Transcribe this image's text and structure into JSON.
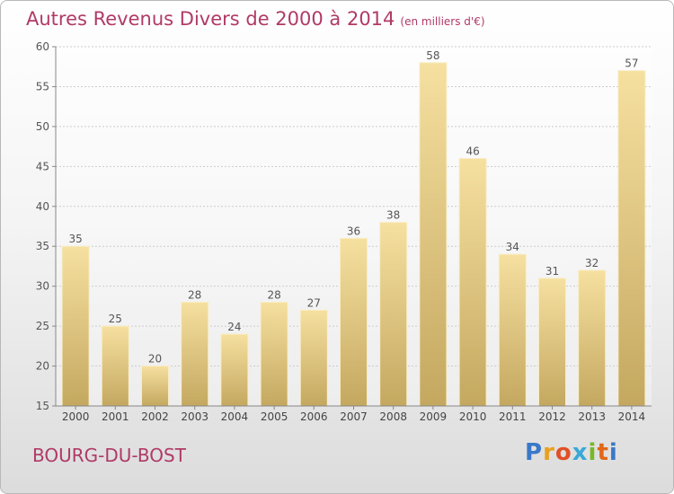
{
  "header": {
    "title": "Autres Revenus Divers de 2000 à 2014",
    "subtitle": "(en milliers d'€)"
  },
  "footer": {
    "commune": "BOURG-DU-BOST",
    "logo_letters": [
      "P",
      "r",
      "o",
      "x",
      "i",
      "t",
      "i"
    ],
    "logo_colors": [
      "#3a78c8",
      "#e8a020",
      "#e05028",
      "#3aa8d8",
      "#78b828",
      "#e06818",
      "#3a78c8"
    ]
  },
  "chart_data": {
    "type": "bar",
    "title": "Autres Revenus Divers de 2000 à 2014",
    "subtitle": "(en milliers d'€)",
    "categories": [
      "2000",
      "2001",
      "2002",
      "2003",
      "2004",
      "2005",
      "2006",
      "2007",
      "2008",
      "2009",
      "2010",
      "2011",
      "2012",
      "2013",
      "2014"
    ],
    "values": [
      35,
      25,
      20,
      28,
      24,
      28,
      27,
      36,
      38,
      58,
      46,
      34,
      31,
      32,
      57
    ],
    "ylim": [
      15,
      60
    ],
    "yticks": [
      15,
      20,
      25,
      30,
      35,
      40,
      45,
      50,
      55,
      60
    ],
    "grid": true,
    "bar_color": "#e8cf8a",
    "label_color": "#555555"
  }
}
